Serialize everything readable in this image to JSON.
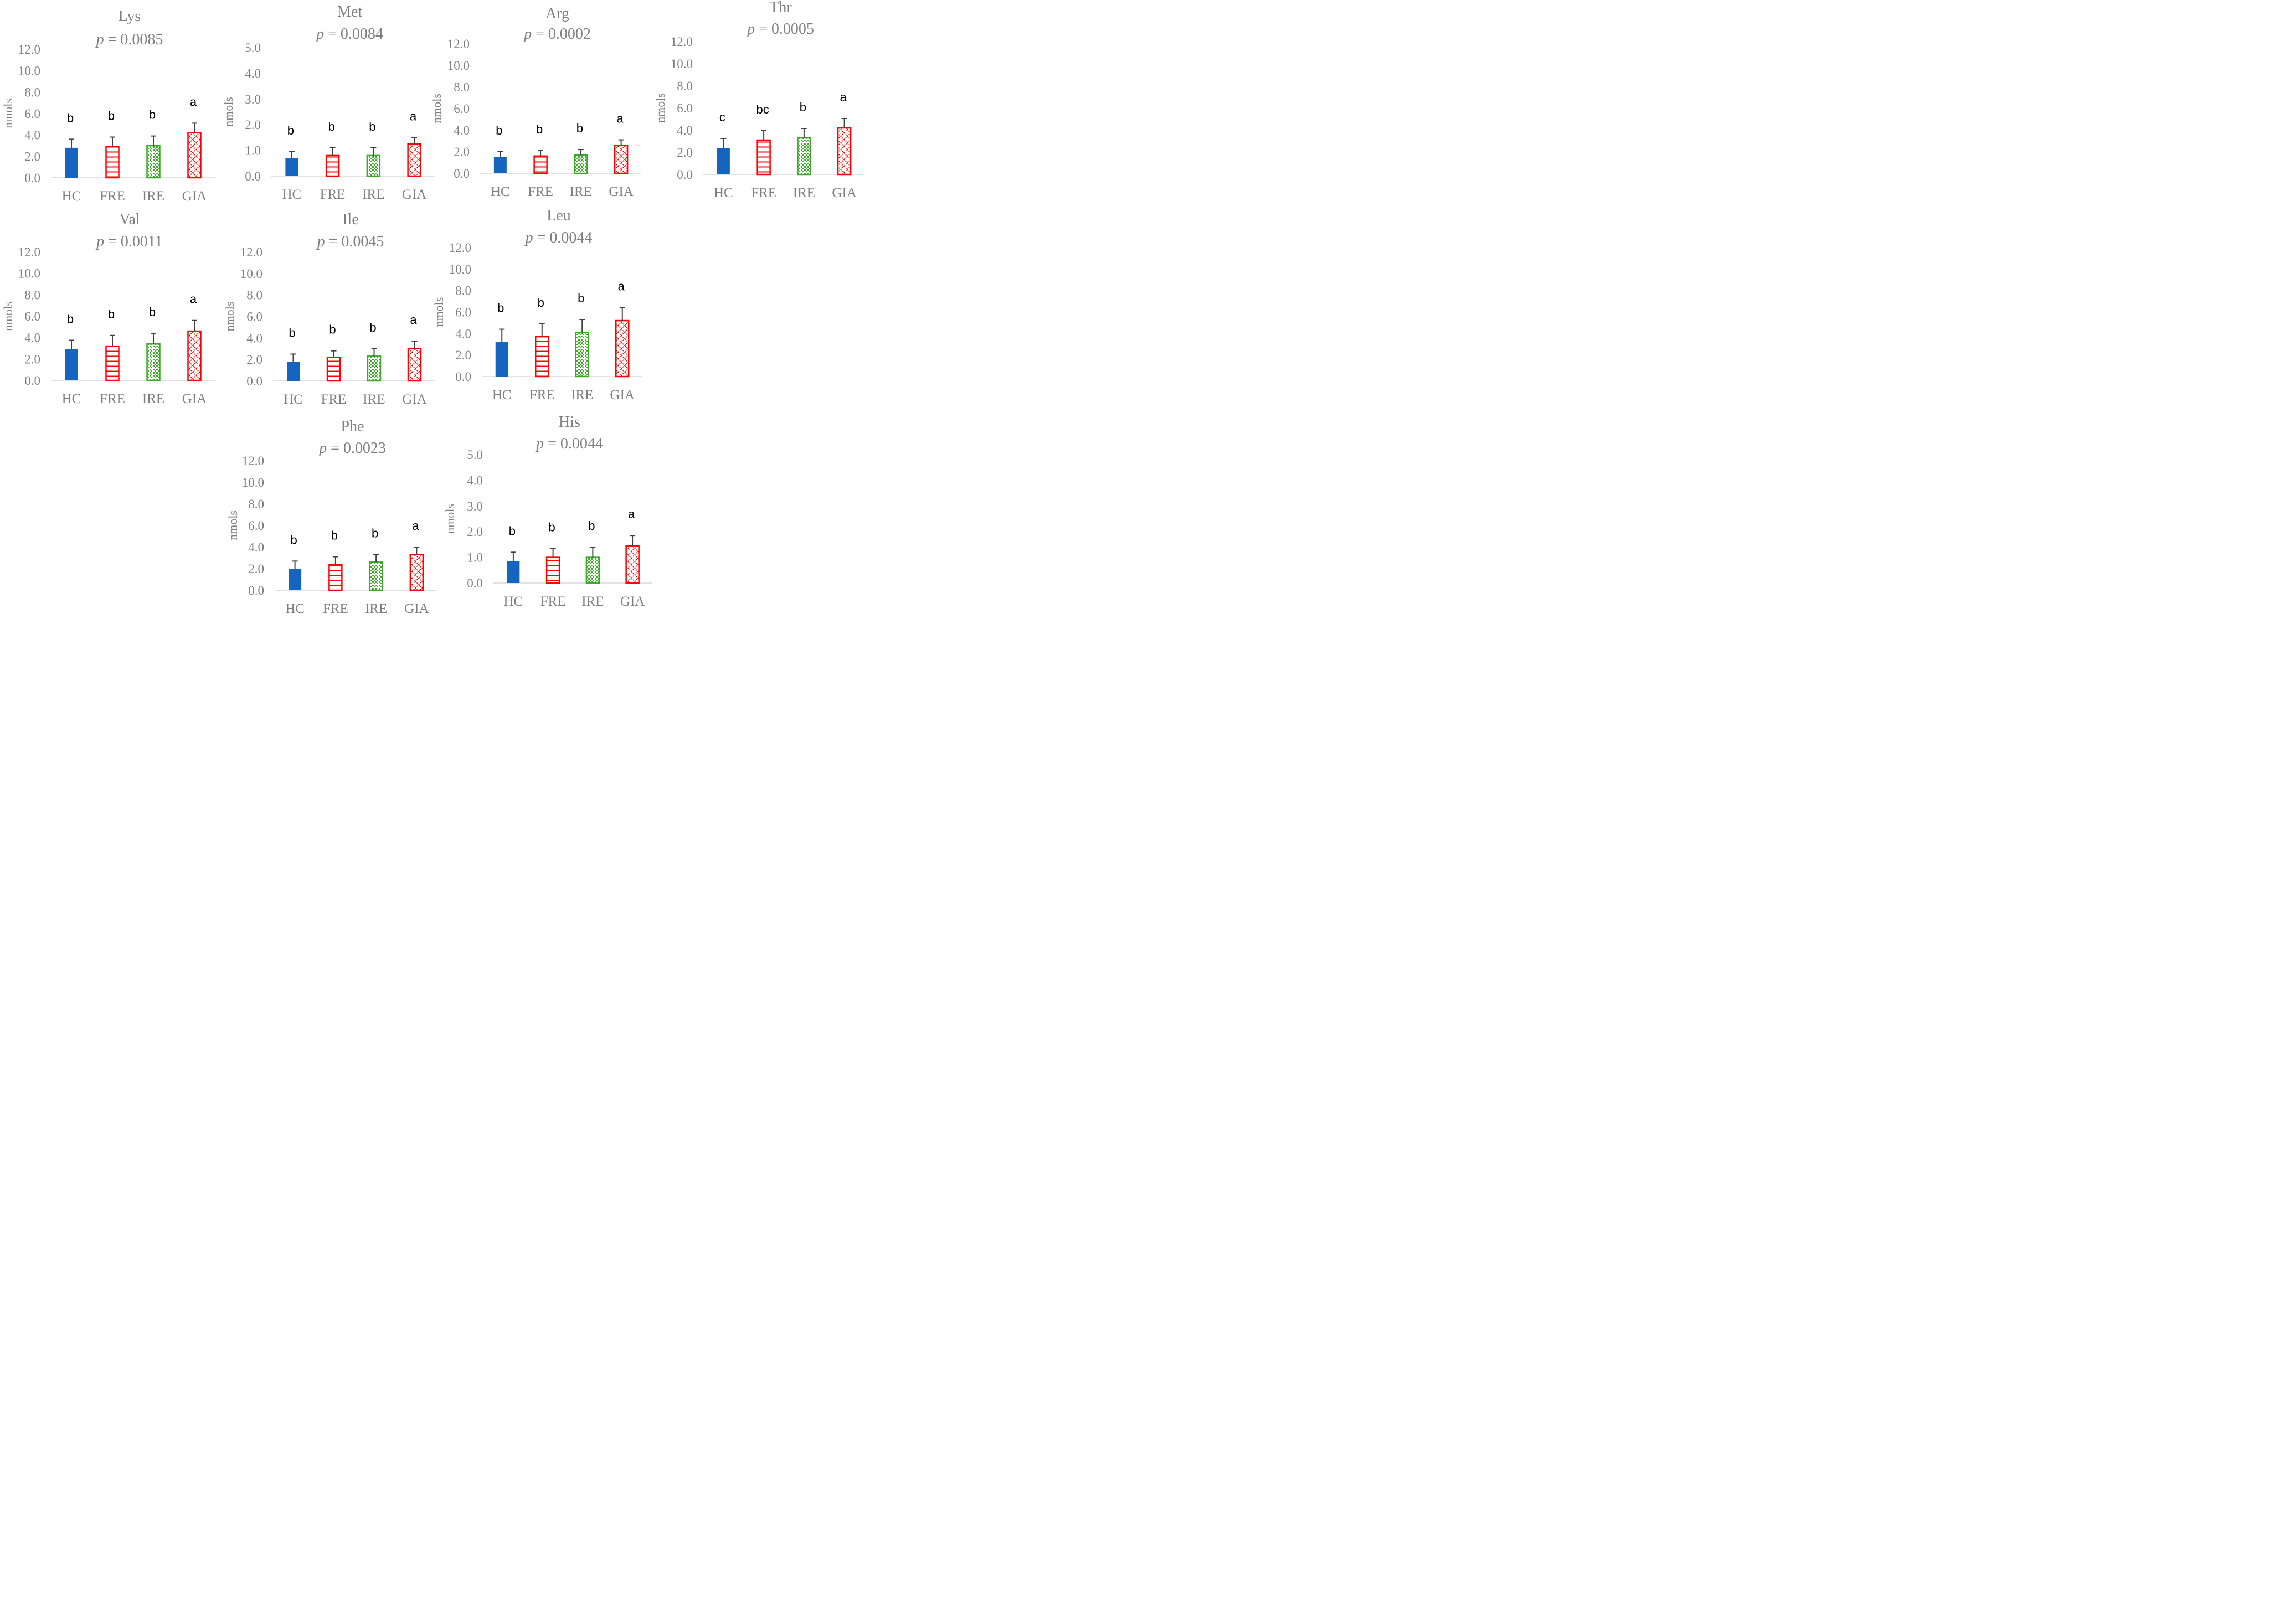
{
  "categories": [
    "HC",
    "FRE",
    "IRE",
    "GIA"
  ],
  "y_label": "nmols",
  "p_prefix": "p",
  "colors": {
    "HC": "#1565c0",
    "FRE": "#ff0000",
    "IRE": "#3cab28",
    "GIA": "#ff0000",
    "axis_text": "#7f7f7f",
    "error_bar": "#404040"
  },
  "chart_data": [
    {
      "type": "bar",
      "title": "Lys",
      "p_value": "= 0.0085",
      "categories": [
        "HC",
        "FRE",
        "IRE",
        "GIA"
      ],
      "values": [
        2.8,
        2.9,
        3.0,
        4.2
      ],
      "errors": [
        0.8,
        0.9,
        0.9,
        0.9
      ],
      "letters": [
        "b",
        "b",
        "b",
        "a"
      ],
      "ylim": [
        0,
        12
      ],
      "yticks": [
        "0.0",
        "2.0",
        "4.0",
        "6.0",
        "8.0",
        "10.0",
        "12.0"
      ],
      "ylabel": "nmols"
    },
    {
      "type": "bar",
      "title": "Met",
      "p_value": "= 0.0084",
      "categories": [
        "HC",
        "FRE",
        "IRE",
        "GIA"
      ],
      "values": [
        0.7,
        0.8,
        0.8,
        1.25
      ],
      "errors": [
        0.25,
        0.3,
        0.3,
        0.25
      ],
      "letters": [
        "b",
        "b",
        "b",
        "a"
      ],
      "ylim": [
        0,
        5
      ],
      "yticks": [
        "0.0",
        "1.0",
        "2.0",
        "3.0",
        "4.0",
        "5.0"
      ],
      "ylabel": "nmols"
    },
    {
      "type": "bar",
      "title": "Arg",
      "p_value": "= 0.0002",
      "categories": [
        "HC",
        "FRE",
        "IRE",
        "GIA"
      ],
      "values": [
        1.5,
        1.6,
        1.7,
        2.6
      ],
      "errors": [
        0.5,
        0.5,
        0.5,
        0.5
      ],
      "letters": [
        "b",
        "b",
        "b",
        "a"
      ],
      "ylim": [
        0,
        12
      ],
      "yticks": [
        "0.0",
        "2.0",
        "4.0",
        "6.0",
        "8.0",
        "10.0",
        "12.0"
      ],
      "ylabel": "nmols"
    },
    {
      "type": "bar",
      "title": "Thr",
      "p_value": "= 0.0005",
      "categories": [
        "HC",
        "FRE",
        "IRE",
        "GIA"
      ],
      "values": [
        2.4,
        3.1,
        3.3,
        4.2
      ],
      "errors": [
        0.85,
        0.85,
        0.85,
        0.85
      ],
      "letters": [
        "c",
        "bc",
        "b",
        "a"
      ],
      "ylim": [
        0,
        12
      ],
      "yticks": [
        "0.0",
        "2.0",
        "4.0",
        "6.0",
        "8.0",
        "10.0",
        "12.0"
      ],
      "ylabel": "nmols"
    },
    {
      "type": "bar",
      "title": "Val",
      "p_value": "= 0.0011",
      "categories": [
        "HC",
        "FRE",
        "IRE",
        "GIA"
      ],
      "values": [
        2.9,
        3.2,
        3.4,
        4.6
      ],
      "errors": [
        0.85,
        1.0,
        1.0,
        1.0
      ],
      "letters": [
        "b",
        "b",
        "b",
        "a"
      ],
      "ylim": [
        0,
        12
      ],
      "yticks": [
        "0.0",
        "2.0",
        "4.0",
        "6.0",
        "8.0",
        "10.0",
        "12.0"
      ],
      "ylabel": "nmols"
    },
    {
      "type": "bar",
      "title": "Ile",
      "p_value": "= 0.0045",
      "categories": [
        "HC",
        "FRE",
        "IRE",
        "GIA"
      ],
      "values": [
        1.8,
        2.2,
        2.3,
        3.0
      ],
      "errors": [
        0.7,
        0.6,
        0.7,
        0.7
      ],
      "letters": [
        "b",
        "b",
        "b",
        "a"
      ],
      "ylim": [
        0,
        12
      ],
      "yticks": [
        "0.0",
        "2.0",
        "4.0",
        "6.0",
        "8.0",
        "10.0",
        "12.0"
      ],
      "ylabel": "nmols"
    },
    {
      "type": "bar",
      "title": "Leu",
      "p_value": "= 0.0044",
      "categories": [
        "HC",
        "FRE",
        "IRE",
        "GIA"
      ],
      "values": [
        3.2,
        3.7,
        4.1,
        5.2
      ],
      "errors": [
        1.2,
        1.2,
        1.2,
        1.2
      ],
      "letters": [
        "b",
        "b",
        "b",
        "a"
      ],
      "ylim": [
        0,
        12
      ],
      "yticks": [
        "0.0",
        "2.0",
        "4.0",
        "6.0",
        "8.0",
        "10.0",
        "12.0"
      ],
      "ylabel": "nmols"
    },
    {
      "type": "bar",
      "title": "Phe",
      "p_value": "= 0.0023",
      "categories": [
        "HC",
        "FRE",
        "IRE",
        "GIA"
      ],
      "values": [
        2.0,
        2.4,
        2.6,
        3.3
      ],
      "errors": [
        0.7,
        0.7,
        0.7,
        0.7
      ],
      "letters": [
        "b",
        "b",
        "b",
        "a"
      ],
      "ylim": [
        0,
        12
      ],
      "yticks": [
        "0.0",
        "2.0",
        "4.0",
        "6.0",
        "8.0",
        "10.0",
        "12.0"
      ],
      "ylabel": "nmols"
    },
    {
      "type": "bar",
      "title": "His",
      "p_value": "= 0.0044",
      "categories": [
        "HC",
        "FRE",
        "IRE",
        "GIA"
      ],
      "values": [
        0.85,
        1.0,
        1.0,
        1.45
      ],
      "errors": [
        0.35,
        0.35,
        0.4,
        0.4
      ],
      "letters": [
        "b",
        "b",
        "b",
        "a"
      ],
      "ylim": [
        0,
        5
      ],
      "yticks": [
        "0.0",
        "1.0",
        "2.0",
        "3.0",
        "4.0",
        "5.0"
      ],
      "ylabel": "nmols"
    }
  ]
}
